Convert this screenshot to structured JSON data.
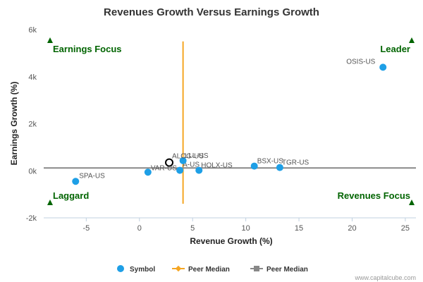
{
  "chart_data": {
    "type": "scatter",
    "title": "Revenues Growth Versus Earnings Growth",
    "xlabel": "Revenue Growth (%)",
    "ylabel": "Earnings Growth (%)",
    "xlim": [
      -9,
      26
    ],
    "ylim": [
      -2000,
      6000
    ],
    "x_ticks": [
      {
        "value": -5,
        "label": "-5"
      },
      {
        "value": 0,
        "label": "0"
      },
      {
        "value": 5,
        "label": "5"
      },
      {
        "value": 10,
        "label": "10"
      },
      {
        "value": 15,
        "label": "15"
      },
      {
        "value": 20,
        "label": "20"
      },
      {
        "value": 25,
        "label": "25"
      }
    ],
    "y_ticks": [
      {
        "value": -2000,
        "label": "-2k"
      },
      {
        "value": 0,
        "label": "0k"
      },
      {
        "value": 2000,
        "label": "2k"
      },
      {
        "value": 4000,
        "label": "4k"
      },
      {
        "value": 6000,
        "label": "6k"
      }
    ],
    "grid": false,
    "points": [
      {
        "label": "OSIS-US",
        "x": 22.9,
        "y": 4400
      },
      {
        "label": "SPA-US",
        "x": -6.0,
        "y": -450
      },
      {
        "label": "VAR-US",
        "x": 0.8,
        "y": -60
      },
      {
        "label": "A-US",
        "x": 3.8,
        "y": 20
      },
      {
        "label": "LLL-US",
        "x": 4.1,
        "y": 430
      },
      {
        "label": "HOLX-US",
        "x": 5.6,
        "y": 20
      },
      {
        "label": "BSX-US",
        "x": 10.8,
        "y": 200
      },
      {
        "label": "TGR-US",
        "x": 13.2,
        "y": 140
      }
    ],
    "focus": {
      "label": "ALOG-US",
      "x": 2.8,
      "y": 350
    },
    "peer_median_x": 4.1,
    "peer_median_y": 120,
    "quadrants": {
      "top_left": "Earnings Focus",
      "top_right": "Leader",
      "bottom_left": "Laggard",
      "bottom_right": "Revenues Focus"
    },
    "legend": [
      {
        "label": "Symbol",
        "kind": "dot",
        "color": "#1e9fe6"
      },
      {
        "label": "Peer Median",
        "kind": "line-diamond",
        "color": "#f5a623"
      },
      {
        "label": "Peer Median",
        "kind": "line-square",
        "color": "#888888"
      }
    ],
    "legend_position": "bottom"
  },
  "credit": "www.capitalcube.com",
  "colors": {
    "point": "#1e9fe6",
    "vertical_median": "#f5a623",
    "horizontal_median": "#888888",
    "quadrant": "#006400",
    "axis": "#c0d0e0"
  }
}
